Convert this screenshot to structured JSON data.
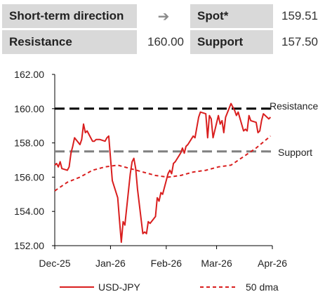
{
  "summary": {
    "direction_label": "Short-term direction",
    "direction_icon": "arrow-right-icon",
    "direction_glyph": "➔",
    "spot_label": "Spot*",
    "spot_value": "159.51",
    "resistance_label": "Resistance",
    "resistance_value": "160.00",
    "support_label": "Support",
    "support_value": "157.50"
  },
  "colors": {
    "usd_jpy": "#d91e1e",
    "dma": "#d91e1e",
    "resistance": "#000000",
    "support": "#808080",
    "panel": "#d9d9d9"
  },
  "chart_data": {
    "type": "line",
    "ylim": [
      152,
      162
    ],
    "yticks": [
      "152.00",
      "154.00",
      "156.00",
      "158.00",
      "160.00",
      "162.00"
    ],
    "xticks": [
      "Dec-25",
      "Jan-26",
      "Feb-26",
      "Mar-26",
      "Apr-26"
    ],
    "legend_position": "bottom",
    "grid": false,
    "series": [
      {
        "name": "USD-JPY",
        "style": "solid",
        "x": [
          "2025-12-01",
          "2025-12-02",
          "2025-12-03",
          "2025-12-04",
          "2025-12-05",
          "2025-12-08",
          "2025-12-09",
          "2025-12-10",
          "2025-12-11",
          "2025-12-12",
          "2025-12-15",
          "2025-12-16",
          "2025-12-17",
          "2025-12-18",
          "2025-12-19",
          "2025-12-22",
          "2025-12-23",
          "2025-12-24",
          "2025-12-26",
          "2025-12-29",
          "2025-12-30",
          "2025-12-31",
          "2026-01-02",
          "2026-01-05",
          "2026-01-06",
          "2026-01-07",
          "2026-01-08",
          "2026-01-09",
          "2026-01-12",
          "2026-01-13",
          "2026-01-14",
          "2026-01-15",
          "2026-01-16",
          "2026-01-19",
          "2026-01-20",
          "2026-01-21",
          "2026-01-22",
          "2026-01-23",
          "2026-01-26",
          "2026-01-27",
          "2026-01-28",
          "2026-01-29",
          "2026-01-30",
          "2026-02-02",
          "2026-02-03",
          "2026-02-04",
          "2026-02-05",
          "2026-02-06",
          "2026-02-09",
          "2026-02-10",
          "2026-02-11",
          "2026-02-12",
          "2026-02-13",
          "2026-02-16",
          "2026-02-17",
          "2026-02-18",
          "2026-02-19",
          "2026-02-20",
          "2026-02-23",
          "2026-02-24",
          "2026-02-25",
          "2026-02-26",
          "2026-02-27",
          "2026-03-02",
          "2026-03-03",
          "2026-03-04",
          "2026-03-05",
          "2026-03-06",
          "2026-03-09",
          "2026-03-10",
          "2026-03-11",
          "2026-03-12",
          "2026-03-13",
          "2026-03-16",
          "2026-03-17",
          "2026-03-18",
          "2026-03-19",
          "2026-03-20",
          "2026-03-23",
          "2026-03-24",
          "2026-03-25",
          "2026-03-26",
          "2026-03-27",
          "2026-03-30",
          "2026-03-31"
        ],
        "y": [
          156.7,
          156.8,
          156.6,
          156.9,
          156.5,
          156.4,
          156.6,
          157.4,
          157.8,
          158.3,
          157.9,
          158.2,
          159.1,
          158.6,
          158.7,
          158.1,
          158.1,
          158.2,
          158.2,
          158.1,
          158.3,
          158.4,
          155.8,
          154.8,
          153.5,
          152.2,
          153.4,
          153.2,
          156.2,
          156.9,
          157.1,
          156.5,
          155.3,
          152.7,
          152.8,
          152.7,
          153.4,
          153.3,
          153.7,
          154.8,
          154.6,
          155.1,
          155.0,
          156.2,
          156.4,
          156.2,
          156.8,
          156.9,
          157.4,
          157.7,
          157.4,
          157.8,
          157.9,
          158.4,
          158.3,
          158.9,
          159.5,
          159.8,
          159.7,
          158.3,
          159.6,
          159.4,
          158.3,
          159.6,
          159.1,
          159.3,
          158.6,
          159.5,
          160.3,
          160.1,
          159.9,
          159.6,
          159.8,
          158.7,
          158.8,
          158.7,
          159.6,
          159.3,
          159.2,
          158.6,
          158.7,
          159.3,
          159.7,
          159.4,
          159.5
        ]
      },
      {
        "name": "50 dma",
        "style": "dashed",
        "x": [
          "2025-12-01",
          "2025-12-08",
          "2025-12-15",
          "2025-12-22",
          "2025-12-29",
          "2026-01-05",
          "2026-01-12",
          "2026-01-19",
          "2026-01-26",
          "2026-02-02",
          "2026-02-09",
          "2026-02-16",
          "2026-02-23",
          "2026-03-02",
          "2026-03-09",
          "2026-03-16",
          "2026-03-23",
          "2026-03-31"
        ],
        "y": [
          155.2,
          155.7,
          156.0,
          156.4,
          156.6,
          156.7,
          156.5,
          156.3,
          156.1,
          156.0,
          156.1,
          156.3,
          156.4,
          156.6,
          156.7,
          157.2,
          157.7,
          158.4
        ]
      }
    ],
    "annotations": [
      {
        "label": "Resistance",
        "y": 160.0,
        "style": "dashed",
        "color": "#000000"
      },
      {
        "label": "Support",
        "y": 157.5,
        "style": "dashed",
        "color": "#808080"
      }
    ]
  }
}
